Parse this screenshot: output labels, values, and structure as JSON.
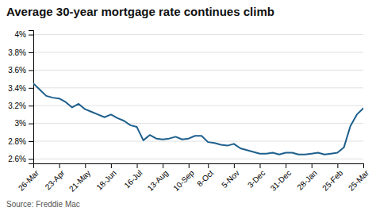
{
  "chart_data": {
    "type": "line",
    "title": "Average 30-year mortgage rate continues climb",
    "source": "Source: Freddie Mac",
    "categories": [
      "26-Mar",
      null,
      null,
      null,
      "23-Apr",
      null,
      null,
      null,
      "21-May",
      null,
      null,
      null,
      "18-Jun",
      null,
      null,
      null,
      "16-Jul",
      null,
      null,
      null,
      "13-Aug",
      null,
      null,
      null,
      "10-Sep",
      null,
      null,
      "8-Oct",
      null,
      null,
      null,
      "5-Nov",
      null,
      null,
      null,
      "3-Dec",
      null,
      null,
      null,
      "31-Dec",
      null,
      null,
      null,
      "28-Jan",
      null,
      null,
      null,
      "25-Feb",
      null,
      null,
      null,
      "25-Mar"
    ],
    "values": [
      3.45,
      3.38,
      3.31,
      3.29,
      3.28,
      3.24,
      3.18,
      3.22,
      3.16,
      3.13,
      3.1,
      3.07,
      3.1,
      3.06,
      3.03,
      2.98,
      2.96,
      2.81,
      2.87,
      2.83,
      2.82,
      2.83,
      2.85,
      2.82,
      2.83,
      2.86,
      2.86,
      2.79,
      2.78,
      2.76,
      2.75,
      2.77,
      2.72,
      2.7,
      2.68,
      2.66,
      2.66,
      2.67,
      2.65,
      2.67,
      2.67,
      2.65,
      2.65,
      2.66,
      2.67,
      2.65,
      2.66,
      2.67,
      2.73,
      2.97,
      3.1,
      3.17
    ],
    "color": "#1d5f8c",
    "ylim": [
      2.55,
      4.05
    ],
    "yticks": [
      {
        "value": 2.6,
        "label": "2.6%"
      },
      {
        "value": 2.8,
        "label": "2.8%"
      },
      {
        "value": 3.0,
        "label": "3%"
      },
      {
        "value": 3.2,
        "label": "3.2%"
      },
      {
        "value": 3.4,
        "label": "3.4%"
      },
      {
        "value": 3.6,
        "label": "3.6%"
      },
      {
        "value": 3.8,
        "label": "3.8%"
      },
      {
        "value": 4.0,
        "label": "4%"
      }
    ],
    "grid": true
  }
}
